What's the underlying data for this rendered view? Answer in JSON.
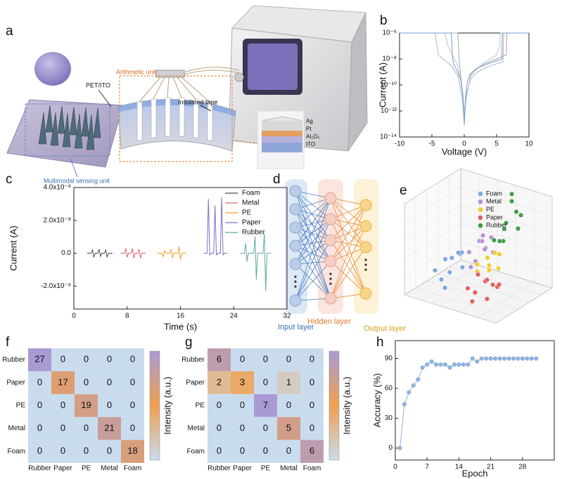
{
  "panel_labels": [
    "a",
    "b",
    "c",
    "d",
    "e",
    "f",
    "g",
    "h"
  ],
  "schematic": {
    "labels": [
      "Arithmetic unit",
      "PET/ITO",
      "Insulated tape",
      "Ag",
      "Pt",
      "Al₂O₃",
      "ITO",
      "Multimodal sensing unit"
    ]
  },
  "network": {
    "layers": [
      "Input layer",
      "Hidden layer",
      "Output layer"
    ]
  },
  "chart_data": [
    {
      "type": "line",
      "log_y": true,
      "xlabel": "Voltage (V)",
      "ylabel": "Current (A)",
      "xlim": [
        -10,
        10
      ],
      "xticks": [
        -10,
        -5,
        0,
        5,
        10
      ],
      "ylim": [
        1e-14,
        1e-06
      ],
      "yticks": [
        {
          "value": 1e-14,
          "label": "10⁻¹⁴"
        },
        {
          "value": 1e-12,
          "label": "10⁻¹²"
        },
        {
          "value": 1e-10,
          "label": "10⁻¹⁰"
        },
        {
          "value": 1e-08,
          "label": "10⁻⁸"
        },
        {
          "value": 1e-06,
          "label": "10⁻⁶"
        }
      ],
      "series": [
        {
          "color": "#b5b5b5",
          "x": [
            -10,
            -4.5,
            -4,
            -3,
            -2,
            -1,
            -0.3,
            0,
            0.3,
            1,
            2,
            4,
            6,
            6.1,
            10
          ],
          "values": [
            1e-06,
            1e-06,
            2e-08,
            8e-09,
            3e-09,
            5e-10,
            1e-11,
            2e-13,
            2e-11,
            3e-10,
            1e-09,
            3e-09,
            6e-09,
            1e-06,
            1e-06
          ]
        },
        {
          "color": "#a8a8a8",
          "x": [
            -10,
            -1,
            -0.8,
            -0.5,
            -0.2,
            0,
            0.3,
            1,
            2,
            3,
            5,
            6.5,
            6.6,
            10
          ],
          "values": [
            1e-06,
            1e-06,
            1e-08,
            3e-10,
            2e-11,
            3e-13,
            1e-11,
            5e-10,
            2e-09,
            4e-09,
            1e-08,
            2e-08,
            1e-06,
            1e-06
          ]
        },
        {
          "color": "#c2c2c2",
          "x": [
            -10,
            -3,
            -2.5,
            -2,
            -1,
            -0.3,
            0,
            0.5,
            1,
            3,
            5,
            5.5,
            5.6,
            10
          ],
          "values": [
            1e-06,
            1e-06,
            1e-07,
            3e-08,
            3e-09,
            5e-11,
            1e-12,
            3e-11,
            6e-10,
            5e-09,
            2e-08,
            1e-07,
            1e-06,
            1e-06
          ]
        },
        {
          "color": "#6f9fcf",
          "x": [
            -10,
            -2,
            -1.8,
            -1.5,
            -1,
            -0.5,
            -0.2,
            0,
            0.2,
            0.5,
            1,
            2,
            4,
            5.8,
            5.9,
            10
          ],
          "values": [
            1e-06,
            1e-06,
            1e-08,
            3e-09,
            1e-09,
            2e-10,
            1e-11,
            8e-14,
            1e-11,
            2e-10,
            8e-10,
            2e-09,
            5e-09,
            1e-08,
            1e-06,
            1e-06
          ]
        }
      ]
    },
    {
      "type": "line",
      "xlabel": "Time (s)",
      "ylabel": "Current (A)",
      "legend": "upper right",
      "xlim": [
        0,
        32
      ],
      "xticks": [
        0,
        8,
        16,
        24,
        32
      ],
      "ylim": [
        -3.4e-08,
        4e-08
      ],
      "yticks": [
        {
          "value": -2e-08,
          "label": "-2.0x10⁻⁸"
        },
        {
          "value": 0,
          "label": "0.0"
        },
        {
          "value": 2e-08,
          "label": "2.0x10⁻⁸"
        },
        {
          "value": 4e-08,
          "label": "4.0x10⁻⁸"
        }
      ],
      "series": [
        {
          "name": "Foam",
          "color": "#4d4d4d",
          "x": [
            2,
            2.6,
            2.8,
            3.0,
            3.2,
            3.6,
            3.8,
            4.0,
            4.2,
            4.6,
            4.8,
            5.0,
            5.2,
            5.8
          ],
          "values": [
            0,
            0,
            2e-09,
            -2.5e-09,
            0,
            0,
            2.5e-09,
            -2e-09,
            0,
            0,
            2e-09,
            -2.5e-09,
            0,
            0
          ]
        },
        {
          "name": "Metal",
          "color": "#e06666",
          "x": [
            7,
            7.6,
            7.8,
            8.0,
            8.2,
            8.6,
            8.8,
            9.0,
            9.2,
            9.6,
            9.8,
            10.0,
            10.2,
            10.8
          ],
          "values": [
            0,
            0,
            3e-09,
            -2.5e-09,
            0,
            0,
            3e-09,
            -3e-09,
            0,
            0,
            2.5e-09,
            -3e-09,
            0,
            0
          ]
        },
        {
          "name": "PE",
          "color": "#f0a020",
          "x": [
            12.5,
            13.2,
            13.4,
            13.6,
            13.8,
            14.4,
            14.6,
            14.8,
            15.0,
            15.6,
            15.8,
            16.0,
            16.2,
            16.8
          ],
          "values": [
            0,
            0,
            -2e-09,
            1.5e-09,
            0,
            0,
            2.5e-09,
            -3e-09,
            0,
            0,
            4e-09,
            -4e-09,
            0,
            0
          ]
        },
        {
          "name": "Paper",
          "color": "#7b6fd0",
          "x": [
            19.5,
            20.0,
            20.2,
            20.4,
            20.6,
            21.0,
            21.2,
            21.4,
            21.6,
            22.0,
            22.2,
            22.4,
            22.6,
            23.0
          ],
          "values": [
            0,
            0,
            3.3e-08,
            -1e-09,
            0,
            0,
            2.9e-08,
            -1e-09,
            0,
            0,
            3.4e-08,
            -1e-09,
            0,
            0
          ]
        },
        {
          "name": "Rubber",
          "color": "#5fa8a0",
          "x": [
            25,
            25.6,
            25.8,
            26.0,
            26.2,
            27.0,
            27.2,
            27.4,
            27.6,
            28.4,
            28.6,
            28.8,
            29.0,
            29.6
          ],
          "values": [
            0,
            0,
            6e-09,
            -5e-09,
            0,
            0,
            1e-08,
            -1.6e-08,
            0,
            0,
            1.2e-08,
            -2.3e-08,
            0,
            0
          ]
        }
      ]
    },
    {
      "type": "scatter3d",
      "legend": "upper right",
      "xlim": [
        0,
        10
      ],
      "ylim": [
        0,
        10
      ],
      "zlim": [
        0,
        10
      ],
      "series": [
        {
          "name": "Foam",
          "color": "#7fa8dc",
          "x": [
            1.5,
            2,
            2.5,
            3,
            1.8,
            2.8,
            3.5,
            2.2,
            3.2,
            4
          ],
          "y": [
            3,
            4,
            2.5,
            5,
            5.5,
            3.5,
            4.5,
            6,
            2,
            3.8
          ],
          "z": [
            2,
            3,
            1.5,
            3.5,
            2.5,
            2,
            4,
            3,
            1,
            2.8
          ]
        },
        {
          "name": "Metal",
          "color": "#b98fd8",
          "x": [
            4,
            4.5,
            5,
            5.5,
            4.2,
            5.2,
            6,
            4.8,
            5.8,
            4.6
          ],
          "y": [
            5,
            6,
            4.5,
            6.5,
            7,
            5.5,
            6,
            4,
            5,
            6.8
          ],
          "z": [
            4,
            5,
            3.5,
            5.5,
            4.5,
            6,
            4.2,
            3,
            5,
            3.8
          ]
        },
        {
          "name": "PE",
          "color": "#f2cc2e",
          "x": [
            5.5,
            6,
            6.5,
            7,
            5.8,
            6.8,
            6.2,
            7.2
          ],
          "y": [
            4,
            5,
            4.5,
            5.5,
            3.5,
            4,
            6,
            5
          ],
          "z": [
            3.5,
            4,
            3,
            4.5,
            3,
            3.8,
            4.2,
            3.2
          ]
        },
        {
          "name": "Paper",
          "color": "#e06060",
          "x": [
            6,
            6.5,
            7,
            7.5,
            8,
            6.8,
            7.8,
            7.2,
            8.5,
            6.2
          ],
          "y": [
            1.5,
            2,
            3,
            2.5,
            3.5,
            1,
            2,
            4,
            3,
            3
          ],
          "z": [
            2,
            1.5,
            2.5,
            3,
            2,
            1,
            1.2,
            1.8,
            2.6,
            3
          ]
        },
        {
          "name": "Rubber",
          "color": "#3e9e48",
          "x": [
            5.5,
            6,
            6.5,
            7,
            6.2,
            7.5,
            6.8,
            5.8,
            7.2,
            6.5
          ],
          "y": [
            7,
            8,
            7.5,
            8.5,
            9,
            8,
            6.5,
            7.5,
            9,
            8.5
          ],
          "z": [
            5,
            6,
            7,
            8,
            9.5,
            6.5,
            5.5,
            4.8,
            7.5,
            9
          ]
        }
      ]
    },
    {
      "type": "heatmap",
      "row_labels": [
        "Rubber",
        "Paper",
        "PE",
        "Metal",
        "Foam"
      ],
      "col_labels": [
        "Rubber",
        "Paper",
        "PE",
        "Metal",
        "Foam"
      ],
      "values": [
        [
          27,
          0,
          0,
          0,
          0
        ],
        [
          0,
          17,
          0,
          0,
          0
        ],
        [
          0,
          0,
          19,
          0,
          0
        ],
        [
          0,
          0,
          0,
          21,
          0
        ],
        [
          0,
          0,
          0,
          0,
          18
        ]
      ],
      "colorbar_label": "Intensity (a.u.)",
      "colormap": [
        "#c9dcee",
        "#f0a050",
        "#a99ad4"
      ]
    },
    {
      "type": "heatmap",
      "row_labels": [
        "Rubber",
        "Paper",
        "PE",
        "Metal",
        "Foam"
      ],
      "col_labels": [
        "Rubber",
        "Paper",
        "PE",
        "Metal",
        "Foam"
      ],
      "values": [
        [
          6,
          0,
          0,
          0,
          0
        ],
        [
          2,
          3,
          0,
          1,
          0
        ],
        [
          0,
          0,
          7,
          0,
          0
        ],
        [
          0,
          0,
          0,
          5,
          0
        ],
        [
          0,
          0,
          0,
          0,
          6
        ]
      ],
      "colorbar_label": "Intensity (a.u.)",
      "colormap": [
        "#c9dcee",
        "#f0a050",
        "#a99ad4"
      ]
    },
    {
      "type": "line",
      "xlabel": "Epoch",
      "ylabel": "Accuracy (%)",
      "markers": true,
      "color": "#8fb4e0",
      "xlim": [
        0,
        35
      ],
      "xticks": [
        0,
        7,
        14,
        21,
        28
      ],
      "ylim": [
        -12,
        108
      ],
      "yticks": [
        0,
        30,
        60,
        90
      ],
      "x": [
        1,
        2,
        3,
        4,
        5,
        6,
        7,
        8,
        9,
        10,
        11,
        12,
        13,
        14,
        15,
        16,
        17,
        18,
        19,
        20,
        21,
        22,
        23,
        24,
        25,
        26,
        27,
        28,
        29,
        30,
        31
      ],
      "values": [
        0,
        44,
        56,
        63,
        69,
        81,
        84,
        87,
        84,
        84,
        84,
        81,
        84,
        84,
        84,
        84,
        90,
        87,
        90,
        90,
        90,
        90,
        90,
        90,
        90,
        90,
        90,
        90,
        90,
        90,
        90
      ]
    }
  ]
}
